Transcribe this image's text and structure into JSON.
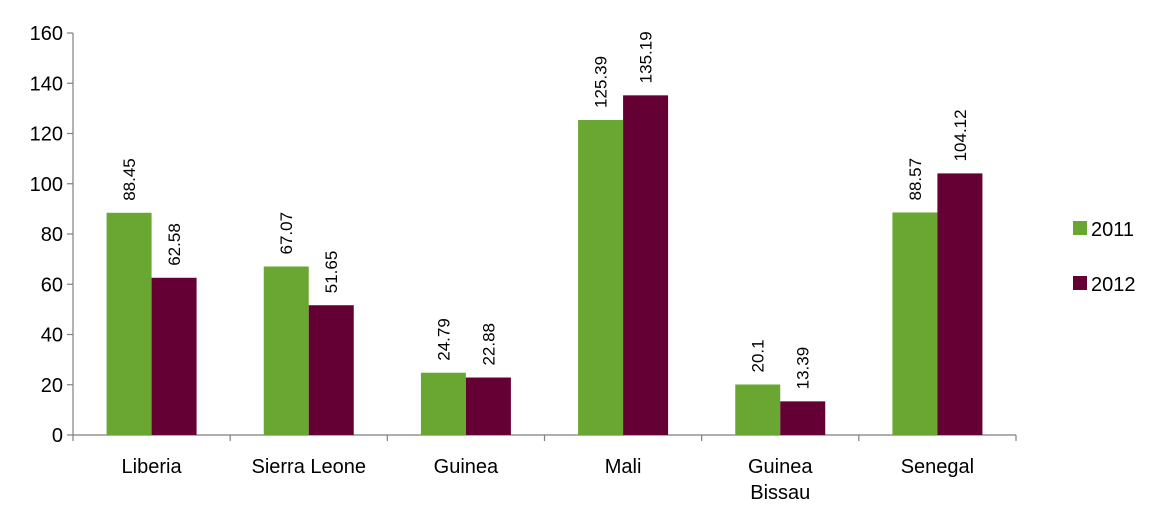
{
  "chart_data": {
    "type": "bar",
    "categories": [
      [
        "Liberia"
      ],
      [
        "Sierra Leone"
      ],
      [
        "Guinea"
      ],
      [
        "Mali"
      ],
      [
        "Guinea",
        "Bissau"
      ],
      [
        "Senegal"
      ]
    ],
    "series": [
      {
        "name": "2011",
        "color": "#6aa632",
        "values": [
          88.45,
          67.07,
          24.79,
          125.39,
          20.1,
          88.57
        ]
      },
      {
        "name": "2012",
        "color": "#650034",
        "values": [
          62.58,
          51.65,
          22.88,
          135.19,
          13.39,
          104.12
        ]
      }
    ],
    "ylim": [
      0,
      160
    ],
    "yticks": [
      0,
      20,
      40,
      60,
      80,
      100,
      120,
      140,
      160
    ],
    "grid": false,
    "legend_position": "right",
    "data_labels": true,
    "title": "",
    "xlabel": "",
    "ylabel": ""
  }
}
